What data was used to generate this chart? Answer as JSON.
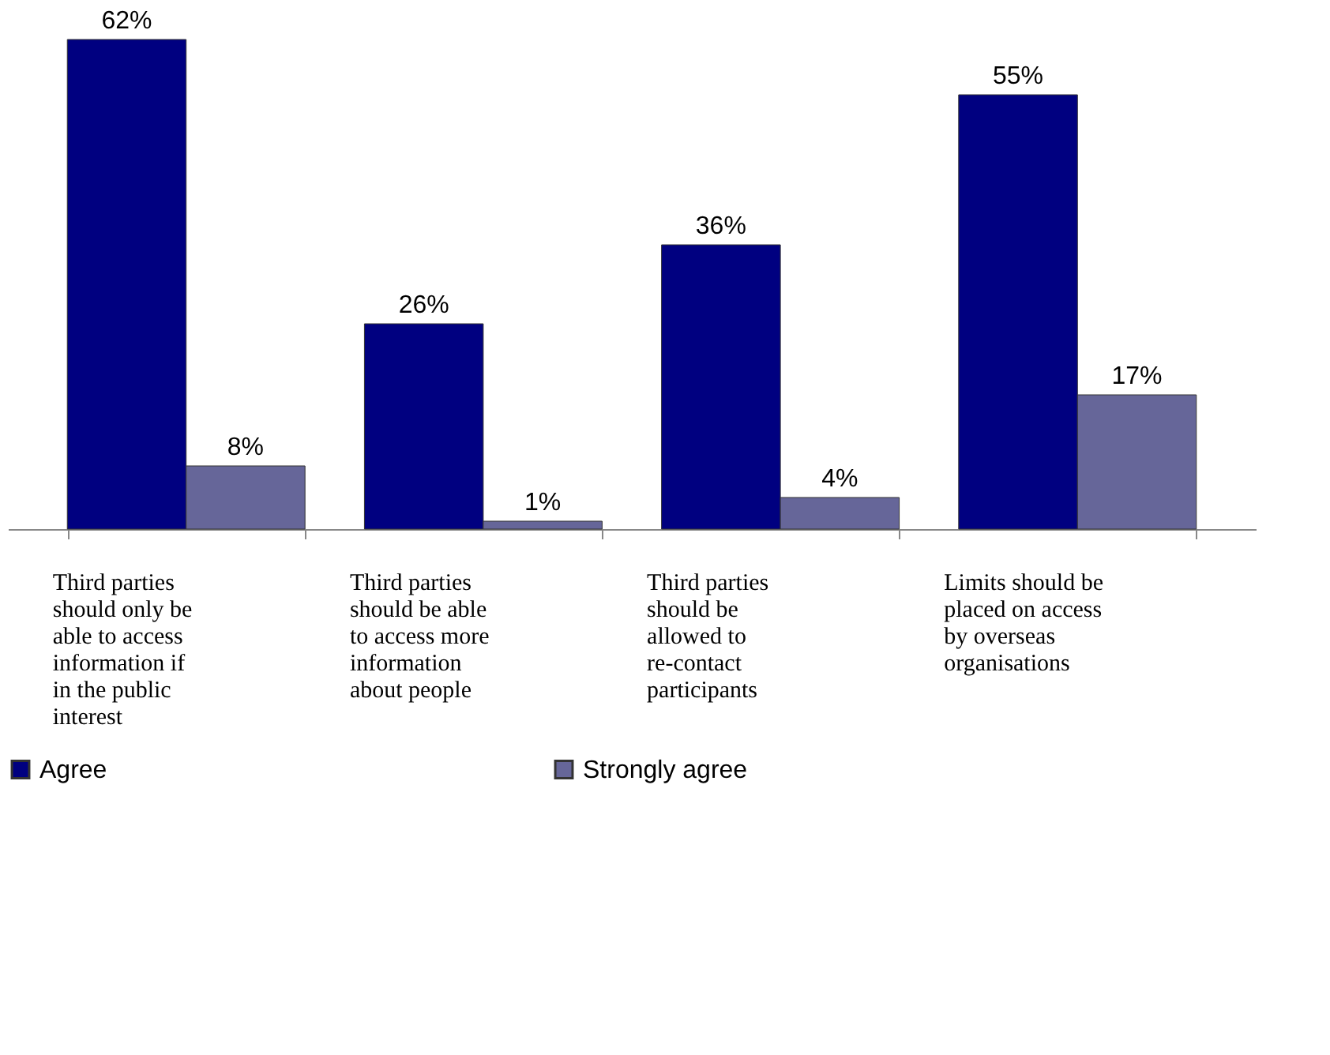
{
  "chart_data": {
    "type": "bar",
    "categories": [
      "Third parties should only be able to access information if in the public interest",
      "Third parties should be able to access more information about people",
      "Third parties should be allowed to re-contact participants",
      "Limits should be placed on access by overseas organisations"
    ],
    "series": [
      {
        "name": "Agree",
        "color": "#000080",
        "values": [
          62,
          26,
          36,
          55
        ],
        "value_labels": [
          "62%",
          "26%",
          "36%",
          "55%"
        ]
      },
      {
        "name": "Strongly agree",
        "color": "#666699",
        "values": [
          8,
          1,
          4,
          17
        ],
        "value_labels": [
          "8%",
          "1%",
          "4%",
          "17%"
        ]
      }
    ],
    "grid": false,
    "legend": "bottom"
  }
}
